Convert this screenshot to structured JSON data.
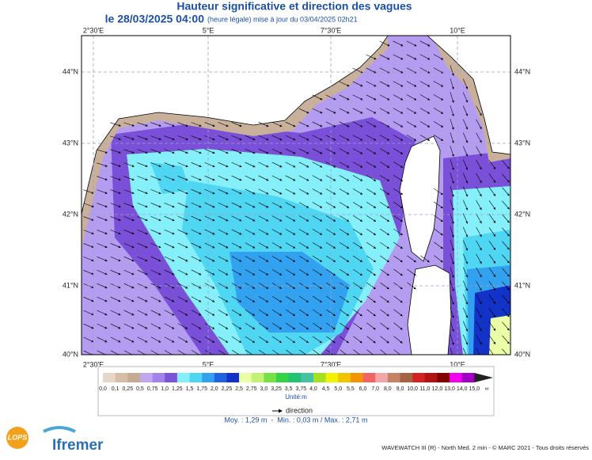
{
  "header": {
    "title": "Hauteur significative et direction des vagues",
    "date": "le 28/03/2025 04:00",
    "update": "(heure légale) mise à jour du 03/04/2025 02h21"
  },
  "map": {
    "lon_labels": [
      "2°30'E",
      "5°E",
      "7°30'E",
      "10°E"
    ],
    "lat_labels": [
      "44°N",
      "43°N",
      "42°N",
      "41°N",
      "40°N"
    ]
  },
  "legend": {
    "labels": [
      "0,0",
      "0,1",
      "0,25",
      "0,5",
      "0,75",
      "1,0",
      "1,25",
      "1,5",
      "1,75",
      "2,0",
      "2,25",
      "2,5",
      "2,75",
      "3,0",
      "3,25",
      "3,5",
      "3,75",
      "4,0",
      "4,5",
      "5,0",
      "5,5",
      "6,0",
      "7,0",
      "8,0",
      "9,0",
      "10,0",
      "11,0",
      "12,0",
      "13,0",
      "14,0",
      "15,0",
      "∞"
    ],
    "colors": [
      "#e6d6c8",
      "#d6bea6",
      "#c6aa92",
      "#c0a8f0",
      "#a482ea",
      "#7c52d8",
      "#86f0fa",
      "#4ed6f2",
      "#32a2f0",
      "#2062e2",
      "#1232c8",
      "#eaffa6",
      "#c2f274",
      "#74e244",
      "#34d244",
      "#22c474",
      "#44c2a2",
      "#a6e022",
      "#f2f200",
      "#f2c400",
      "#f29400",
      "#f26464",
      "#f4a6a6",
      "#c48464",
      "#a46444",
      "#d22222",
      "#b21212",
      "#820000",
      "#f200f2",
      "#a200c4",
      "#222222"
    ],
    "unit": "Unité:m",
    "direction": "direction",
    "stats": "Moy. : 1,29 m  -  Min. : 0,03 m / Max. : 2,71 m"
  },
  "footer": {
    "credit": "WAVEWATCH III (R) - North Med. 2 min - © MARC 2021 - Tous droits réservés",
    "logo_lops": "LOPS",
    "logo_ifremer": "Ifremer"
  }
}
